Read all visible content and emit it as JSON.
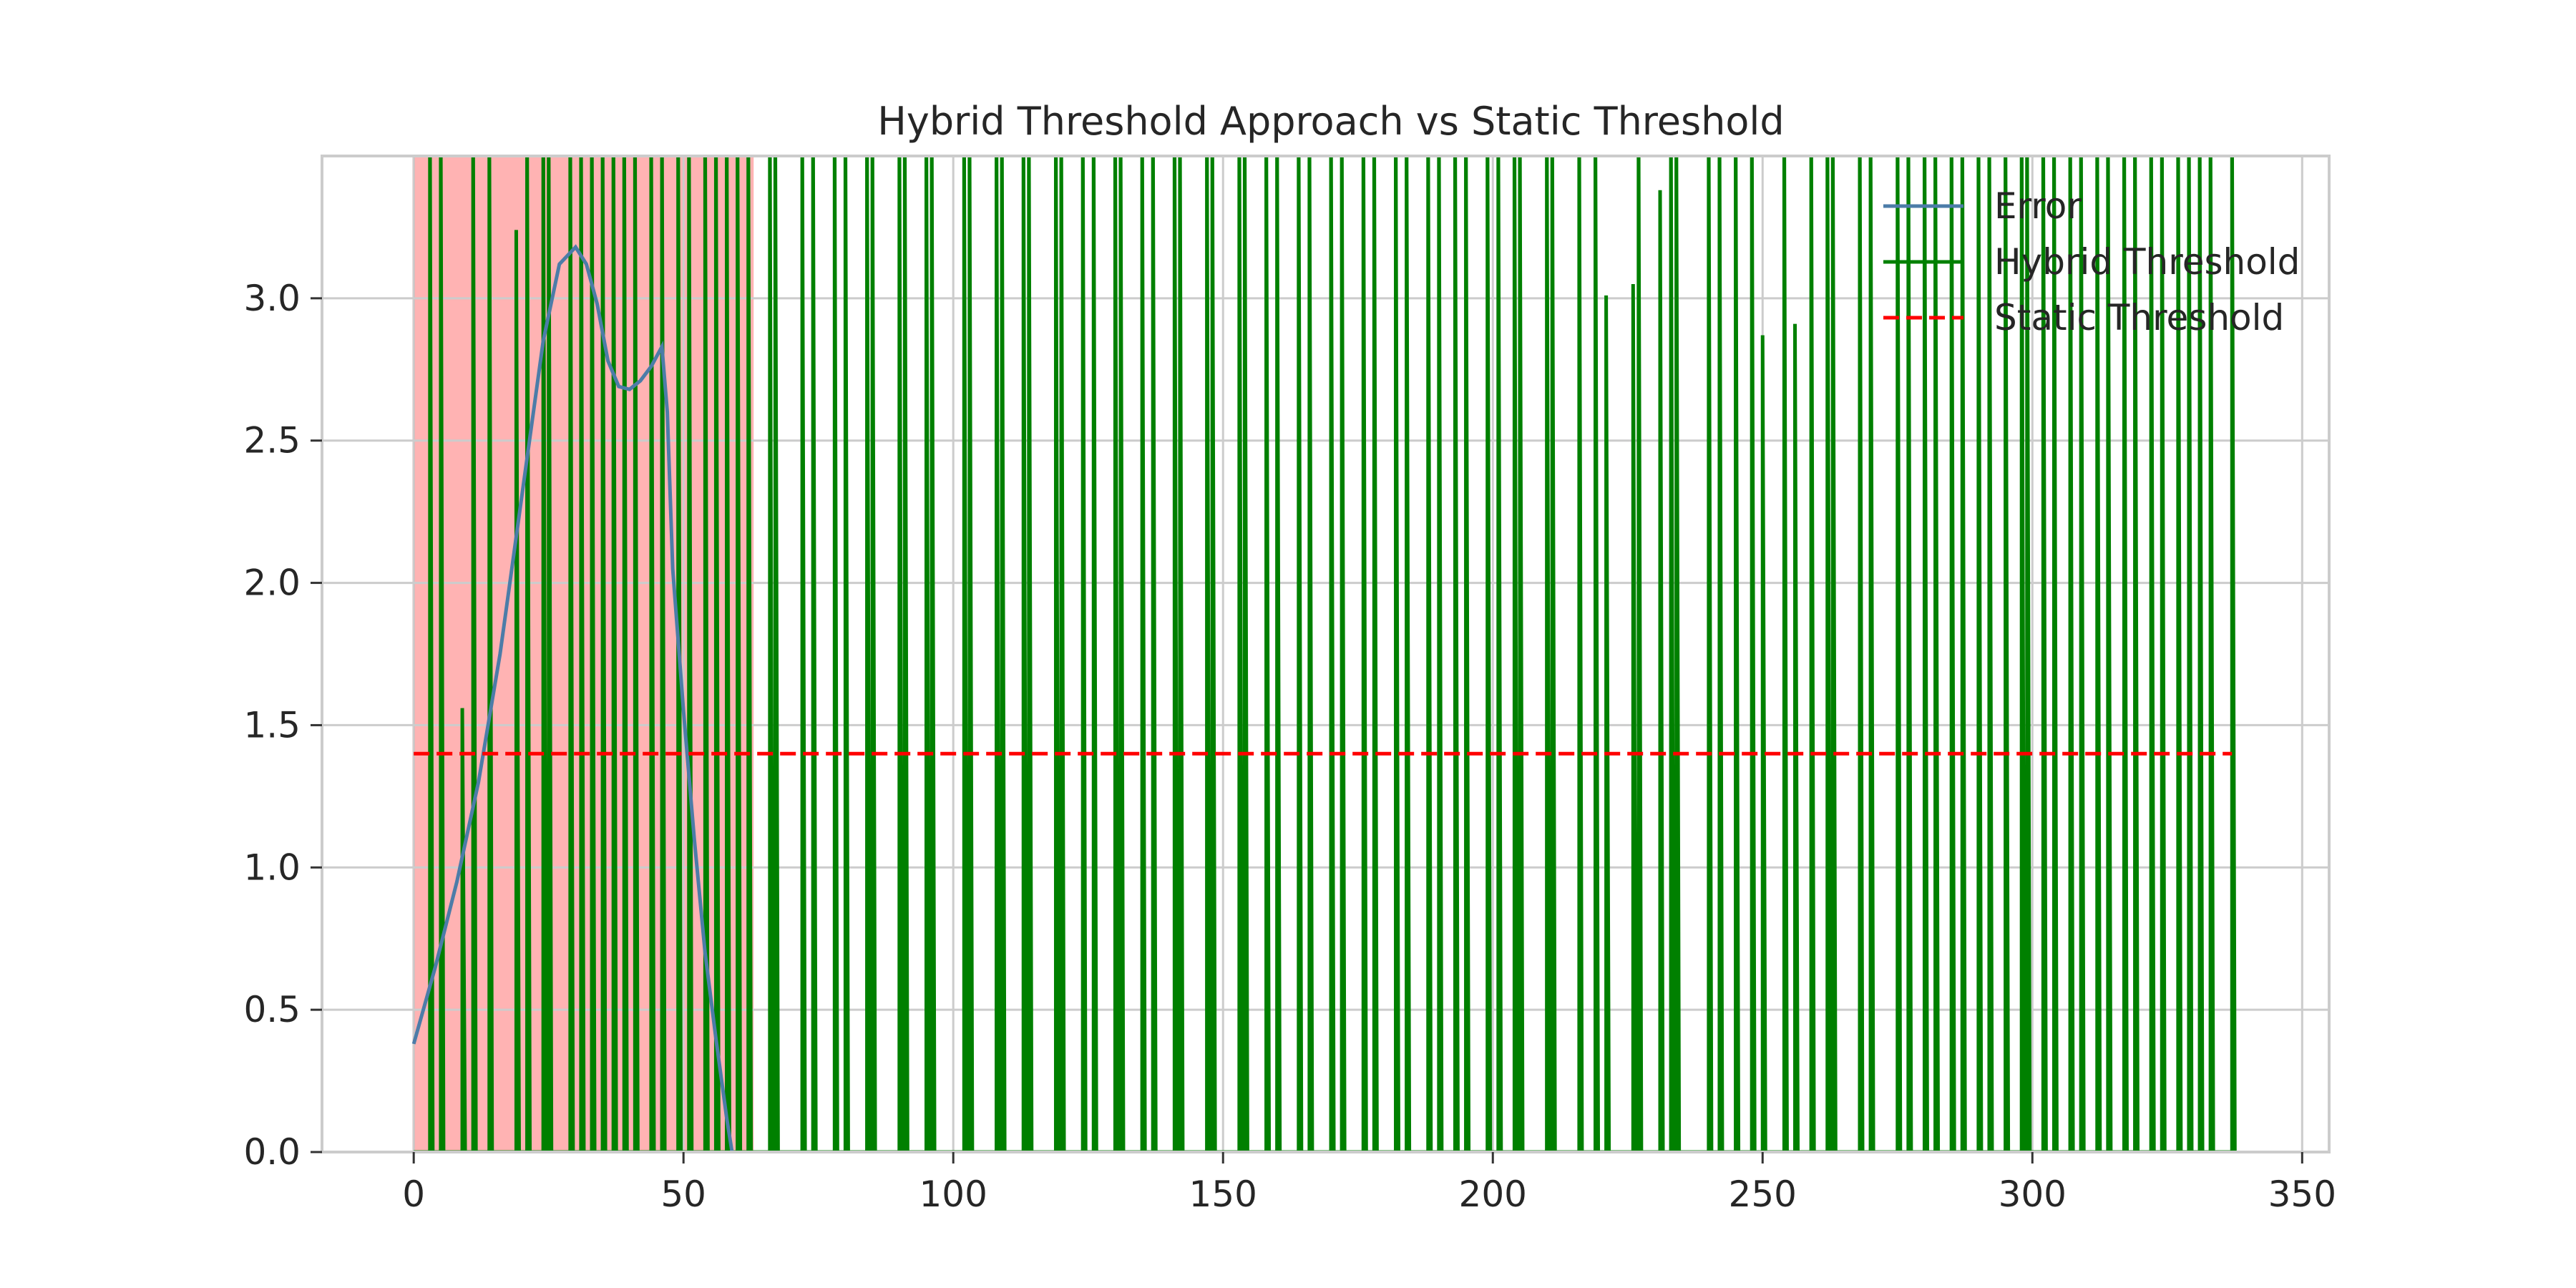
{
  "chart_data": {
    "type": "line",
    "title": "Hybrid Threshold Approach vs Static Threshold",
    "xlabel": "",
    "ylabel": "",
    "xlim": [
      -17,
      355
    ],
    "ylim": [
      0,
      3.5
    ],
    "grid": true,
    "legend_position": "top-right",
    "x_ticks": [
      0,
      50,
      100,
      150,
      200,
      250,
      300,
      350
    ],
    "y_ticks": [
      0.0,
      0.5,
      1.0,
      1.5,
      2.0,
      2.5,
      3.0
    ],
    "x_tick_labels": [
      "0",
      "50",
      "100",
      "150",
      "200",
      "250",
      "300",
      "350"
    ],
    "y_tick_labels": [
      "0.0",
      "0.5",
      "1.0",
      "1.5",
      "2.0",
      "2.5",
      "3.0"
    ],
    "shaded_region": {
      "x_start": 0,
      "x_end": 63,
      "color": "#ffb3b3",
      "edge_color": "#e06666"
    },
    "series": [
      {
        "name": "Error",
        "color": "#4c7ca8",
        "style": "solid",
        "x": [
          0,
          4,
          8,
          12,
          16,
          20,
          24,
          27,
          30,
          32,
          34,
          36,
          38,
          40,
          42,
          44,
          46,
          47,
          48,
          50,
          52,
          54,
          56,
          58,
          59
        ],
        "y": [
          0.38,
          0.65,
          0.95,
          1.3,
          1.75,
          2.3,
          2.85,
          3.12,
          3.18,
          3.12,
          2.98,
          2.78,
          2.69,
          2.68,
          2.71,
          2.76,
          2.83,
          2.6,
          2.05,
          1.55,
          1.1,
          0.7,
          0.4,
          0.12,
          0.0
        ]
      },
      {
        "name": "Hybrid Threshold",
        "color": "#008000",
        "style": "solid",
        "pattern": "zero-and-above-axis pulses",
        "pulse_x": [
          3,
          5,
          9,
          11,
          14,
          19,
          21,
          24,
          25,
          29,
          31,
          33,
          35,
          37,
          39,
          41,
          44,
          46,
          49,
          51,
          54,
          56,
          58,
          60,
          62,
          66,
          67,
          72,
          74,
          78,
          80,
          84,
          85,
          90,
          91,
          95,
          96,
          102,
          103,
          108,
          109,
          113,
          114,
          119,
          120,
          124,
          126,
          130,
          131,
          135,
          137,
          141,
          142,
          147,
          148,
          153,
          154,
          158,
          160,
          164,
          166,
          170,
          172,
          176,
          178,
          182,
          184,
          188,
          190,
          193,
          195,
          199,
          201,
          204,
          205,
          210,
          211,
          216,
          219,
          221,
          226,
          227,
          231,
          233,
          234,
          240,
          242,
          245,
          248,
          250,
          254,
          256,
          259,
          262,
          263,
          268,
          270,
          275,
          277,
          280,
          282,
          285,
          287,
          290,
          292,
          295,
          298,
          299,
          302,
          304,
          307,
          309,
          312,
          314,
          317,
          319,
          322,
          324,
          327,
          329,
          331,
          333,
          337
        ],
        "peak_labels_note": "",
        "notable_peaks": [
          {
            "x": 8.5,
            "y": 1.56
          },
          {
            "x": 19,
            "y": 3.24
          },
          {
            "x": 47,
            "y": 3.44
          },
          {
            "x": 221,
            "y": 3.01
          },
          {
            "x": 226,
            "y": 3.05
          },
          {
            "x": 231,
            "y": 3.38
          },
          {
            "x": 250,
            "y": 2.87
          },
          {
            "x": 256,
            "y": 2.91
          }
        ]
      },
      {
        "name": "Static Threshold",
        "color": "#ff0000",
        "style": "dashed",
        "x": [
          0,
          337
        ],
        "y": [
          1.4,
          1.4
        ]
      }
    ]
  }
}
